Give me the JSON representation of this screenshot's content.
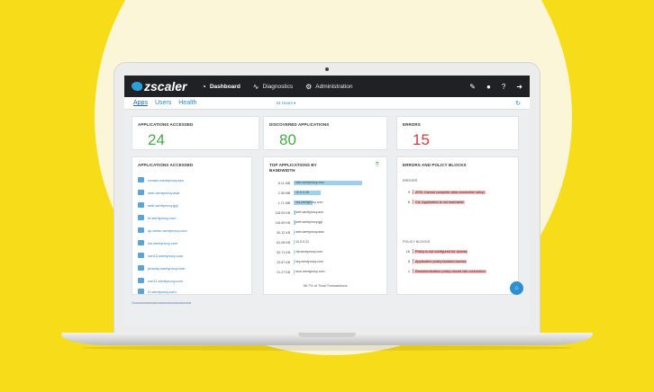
{
  "brand": {
    "name": "zscaler"
  },
  "nav": [
    {
      "label": "Dashboard",
      "icon": "dashboard-icon"
    },
    {
      "label": "Diagnostics",
      "icon": "diagnostics-icon"
    },
    {
      "label": "Administration",
      "icon": "gears-icon"
    }
  ],
  "toolbar_icons": [
    "edit-icon",
    "user-icon",
    "help-icon",
    "logout-icon"
  ],
  "tabs": [
    "Apps",
    "Users",
    "Health"
  ],
  "time_range": "24 Hours ▾",
  "stats": {
    "applications_accessed": {
      "title": "APPLICATIONS ACCESSED",
      "value": "24",
      "color": "#4aa84a"
    },
    "discovered_applications": {
      "title": "DISCOVERED APPLICATIONS",
      "value": "80",
      "color": "#4aa84a"
    },
    "errors": {
      "title": "ERRORS",
      "value": "15",
      "color": "#d33b3b"
    }
  },
  "applications_accessed": {
    "title": "APPLICATIONS ACCESSED",
    "items": [
      "romaro.wentynovy.azu",
      "web.wentynovy.aws",
      "web.wentynovy.ggl",
      "bl.wentynovy.com",
      "ap-wehn.wentynovy.com",
      "vis.wentynovy.com",
      "con13.wentynovy.com",
      "phandy.wentynovy.com",
      "con11.wentynovy.com",
      "f1.wentynovy.com"
    ],
    "footer": "Gaaaaaaaaaaaaaaaaaaaaaaaaaaaaaaaaaaaa"
  },
  "top_bandwidth": {
    "title_line1": "TOP APPLICATIONS BY",
    "title_line2": "BANDWIDTH",
    "rows": [
      {
        "size": "6.11 MB",
        "name": "sich.wentynovy.com",
        "pct": 1.0
      },
      {
        "size": "2.36 MB",
        "name": "10.0.0.26",
        "pct": 0.39
      },
      {
        "size": "1.71 MB",
        "name": "rsa.wentynovy.com",
        "pct": 0.28
      },
      {
        "size": "118.09 KB",
        "name": "web.wentynovy.azu",
        "pct": 0.02
      },
      {
        "size": "116.59 KB",
        "name": "web.wentynovy.ggl",
        "pct": 0.02
      },
      {
        "size": "90.12 KB",
        "name": "web.wentynovy.aws",
        "pct": 0.015
      },
      {
        "size": "61.08 KB",
        "name": "10.0.0.21",
        "pct": 0.01
      },
      {
        "size": "52.71 KB",
        "name": "vis.wentynovy.com",
        "pct": 0.01
      },
      {
        "size": "23.67 KB",
        "name": "key.wentynovy.com",
        "pct": 0.005
      },
      {
        "size": "21.27 KB",
        "name": "mon.wentynovy.com",
        "pct": 0.005
      }
    ],
    "footer": "98.7% of Total Transactions"
  },
  "errors_policy": {
    "title": "ERRORS AND POLICY BLOCKS",
    "errors_label": "ERRORS",
    "errors": [
      {
        "count": "9",
        "message": "ZEN: Cannot complete data connection setup"
      },
      {
        "count": "6",
        "message": "CA: Application is not reachable"
      }
    ],
    "policy_label": "POLICY BLOCKS",
    "policy": [
      {
        "count": "16",
        "message": "Policy is not configured for access"
      },
      {
        "count": "5",
        "message": "Application policy blocked access"
      },
      {
        "count": "1",
        "message": "Reauthentication policy closed idle connection"
      }
    ]
  },
  "colors": {
    "accent": "#2d8bc7",
    "topbar": "#1f2124",
    "background": "#f7dc1a"
  }
}
